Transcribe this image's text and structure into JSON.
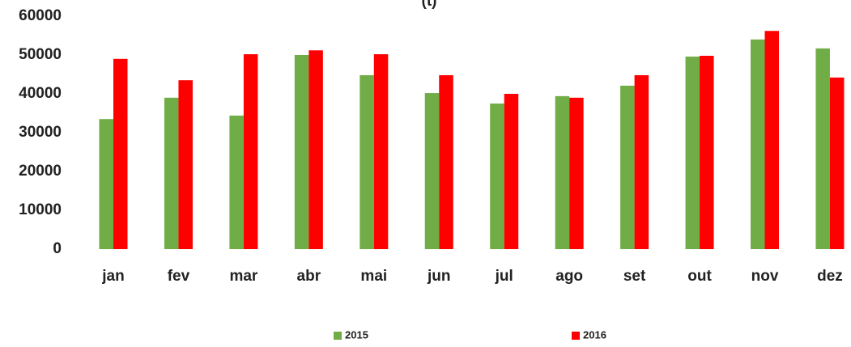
{
  "chart_data": {
    "type": "bar",
    "title": "(t)",
    "categories": [
      "jan",
      "fev",
      "mar",
      "abr",
      "mai",
      "jun",
      "jul",
      "ago",
      "set",
      "out",
      "nov",
      "dez"
    ],
    "series": [
      {
        "name": "2015",
        "color": "#70ad47",
        "values": [
          33500,
          39000,
          34400,
          50000,
          44800,
          40200,
          37500,
          39400,
          42100,
          49600,
          54000,
          51700
        ]
      },
      {
        "name": "2016",
        "color": "#ff0000",
        "values": [
          49000,
          43500,
          50200,
          51200,
          50200,
          44800,
          40000,
          39000,
          44800,
          49800,
          56200,
          44200
        ]
      }
    ],
    "ylim": [
      0,
      60000
    ],
    "yticks": [
      0,
      10000,
      20000,
      30000,
      40000,
      50000,
      60000
    ],
    "grid": false,
    "legend": "bottom"
  }
}
